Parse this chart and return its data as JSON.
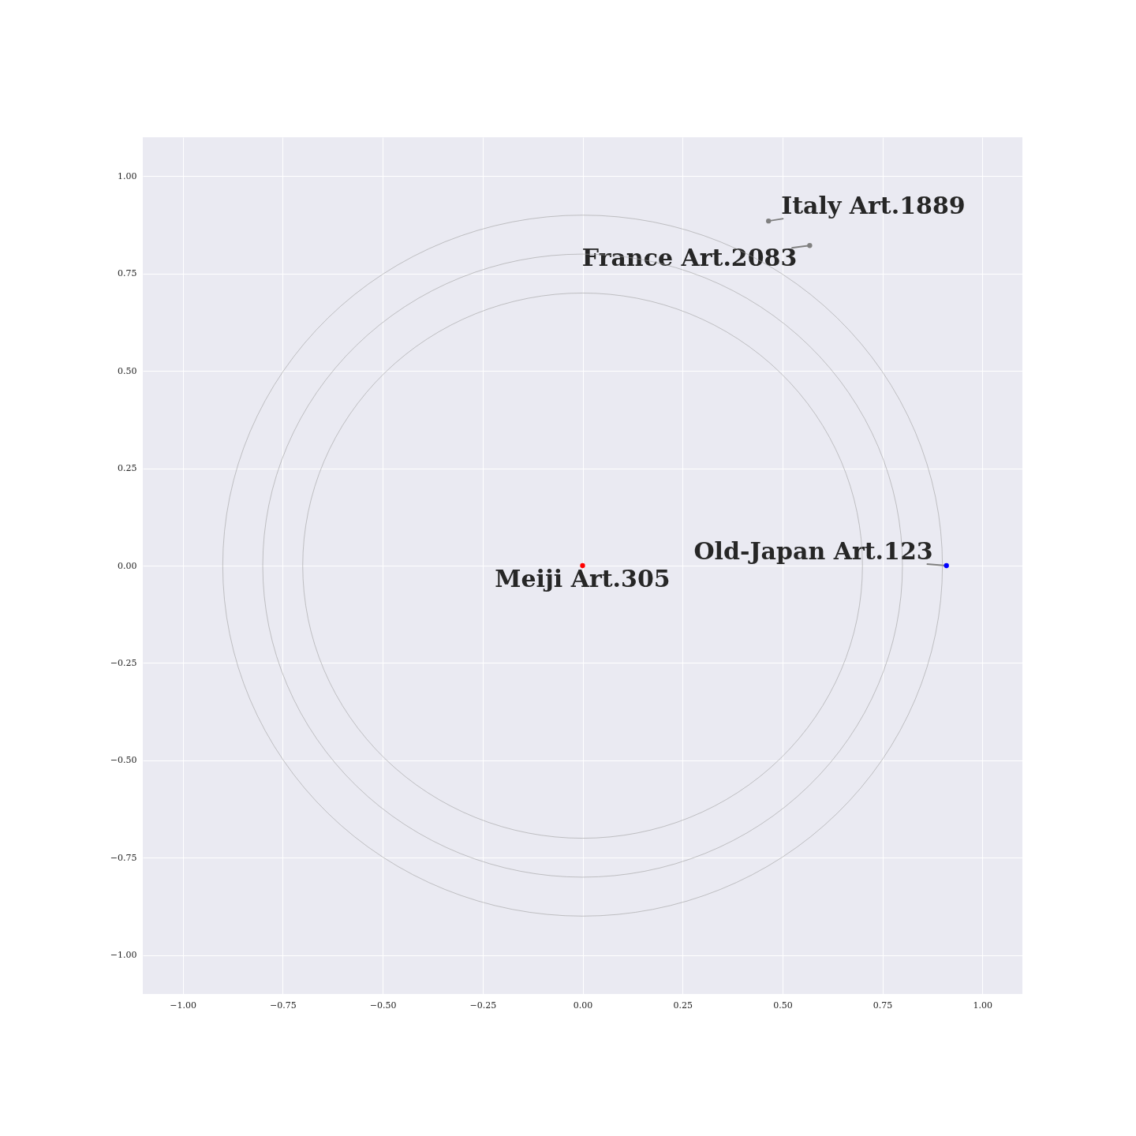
{
  "chart_data": {
    "type": "scatter",
    "xlim": [
      -1.1,
      1.1
    ],
    "ylim": [
      -1.1,
      1.1
    ],
    "xticks": [
      {
        "value": -1,
        "label": "−1.00"
      },
      {
        "value": -0.75,
        "label": "−0.75"
      },
      {
        "value": -0.5,
        "label": "−0.50"
      },
      {
        "value": -0.25,
        "label": "−0.25"
      },
      {
        "value": 0,
        "label": "0.00"
      },
      {
        "value": 0.25,
        "label": "0.25"
      },
      {
        "value": 0.5,
        "label": "0.50"
      },
      {
        "value": 0.75,
        "label": "0.75"
      },
      {
        "value": 1,
        "label": "1.00"
      }
    ],
    "yticks": [
      {
        "value": -1,
        "label": "−1.00"
      },
      {
        "value": -0.75,
        "label": "−0.75"
      },
      {
        "value": -0.5,
        "label": "−0.50"
      },
      {
        "value": -0.25,
        "label": "−0.25"
      },
      {
        "value": 0,
        "label": "0.00"
      },
      {
        "value": 0.25,
        "label": "0.25"
      },
      {
        "value": 0.5,
        "label": "0.50"
      },
      {
        "value": 0.75,
        "label": "0.75"
      },
      {
        "value": 1,
        "label": "1.00"
      }
    ],
    "grid": true,
    "marker": "circle",
    "series": [
      {
        "x": [
          0,
          0.91,
          0.568,
          0.465
        ],
        "values": [
          0,
          0,
          0.822,
          0.885
        ],
        "colors": [
          "#ff0000",
          "#0000ff",
          "#808080",
          "#808080"
        ]
      }
    ],
    "annotations": [
      {
        "text": "Meiji Art.305",
        "x": 0,
        "y": 0
      },
      {
        "text": "Old-Japan Art.123",
        "x": 0.91,
        "y": 0
      },
      {
        "text": "France Art.2083",
        "x": 0.568,
        "y": 0.822
      },
      {
        "text": "Italy Art.1889",
        "x": 0.465,
        "y": 0.885
      }
    ]
  }
}
